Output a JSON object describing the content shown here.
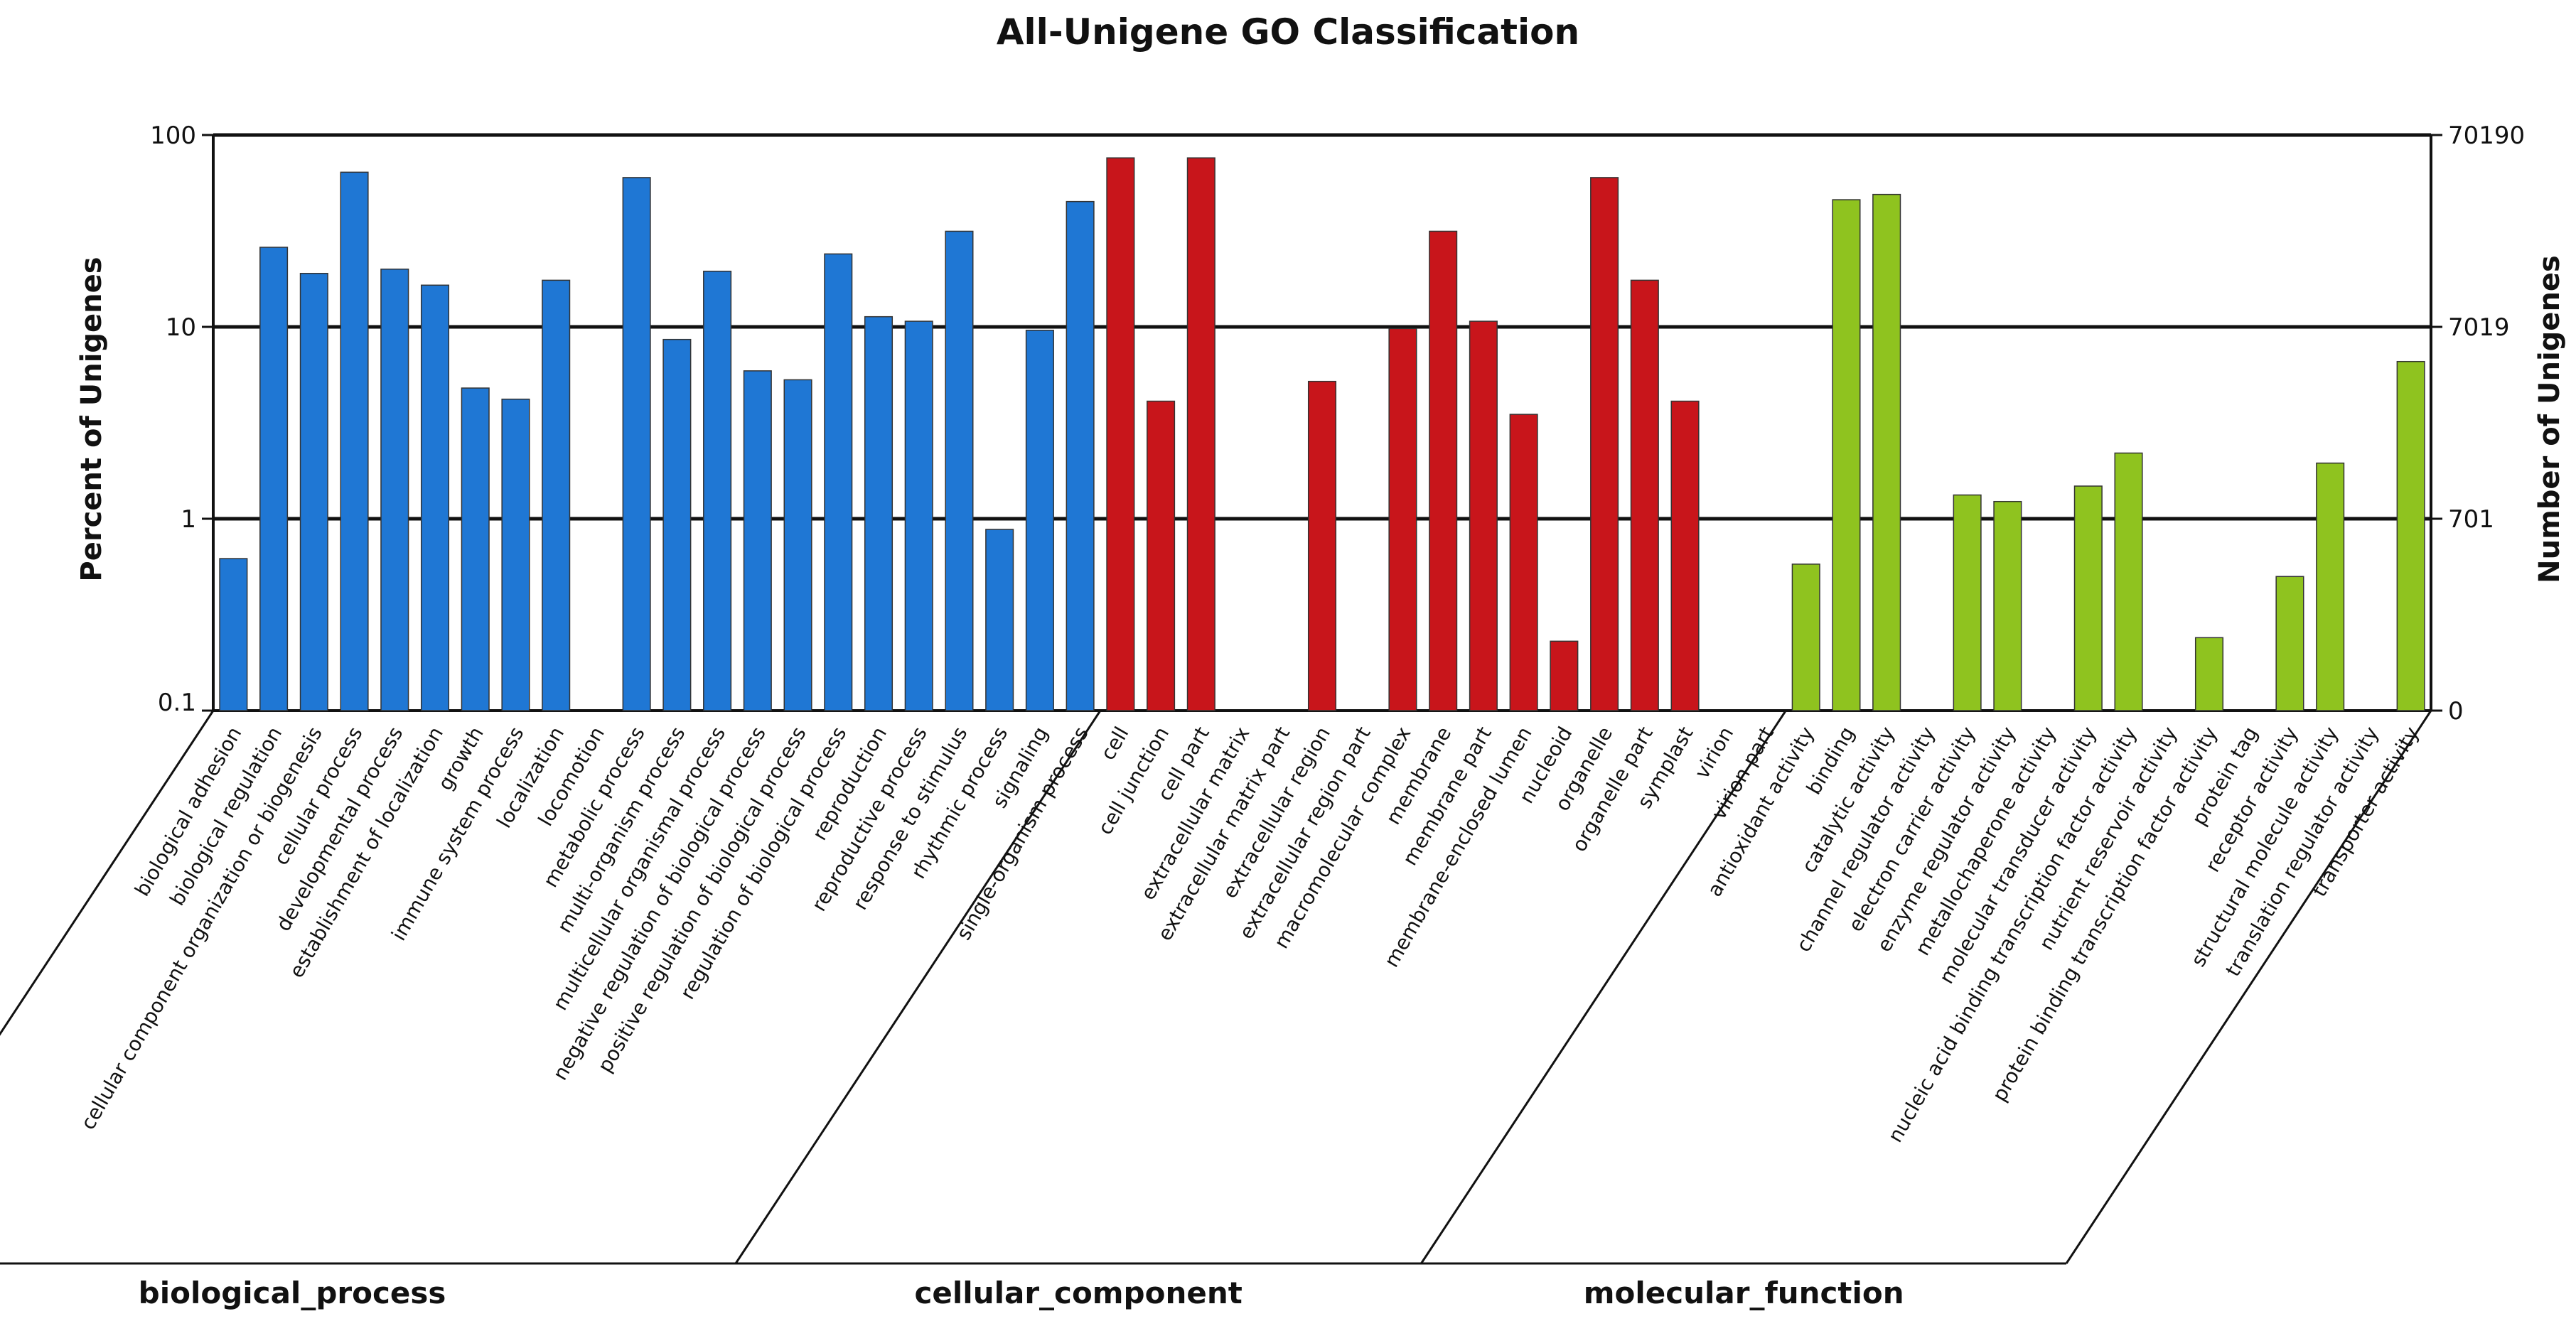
{
  "chart_data": {
    "type": "bar",
    "title": "All-Unigene GO Classification",
    "ylabel": "Percent of Unigenes",
    "ylabel_right": "Number of Unigenes",
    "yscale": "log",
    "ylim": [
      0.1,
      100
    ],
    "left_ticks": [
      "100",
      "10",
      "1",
      "0.1"
    ],
    "right_ticks": [
      "70190",
      "7019",
      "701",
      "0"
    ],
    "grid": "horizontal at 1, 10, 100",
    "groups": [
      {
        "name": "biological_process",
        "color": "#1f77d4",
        "categories": [
          "biological adhesion",
          "biological regulation",
          "cellular component organization or biogenesis",
          "cellular process",
          "developmental process",
          "establishment of localization",
          "growth",
          "immune system process",
          "localization",
          "locomotion",
          "metabolic process",
          "multi-organism process",
          "multicellular organismal process",
          "negative regulation of biological process",
          "positive regulation of biological process",
          "regulation of biological process",
          "reproduction",
          "reproductive process",
          "response to stimulus",
          "rhythmic process",
          "signaling",
          "single-organism process"
        ],
        "values": [
          0.62,
          26,
          19,
          64,
          20,
          16.5,
          4.8,
          4.2,
          17.5,
          null,
          60,
          8.6,
          19.5,
          5.9,
          5.3,
          24,
          11.3,
          10.7,
          31.5,
          0.88,
          9.6,
          45
        ]
      },
      {
        "name": "cellular_component",
        "color": "#c8151b",
        "categories": [
          "cell",
          "cell junction",
          "cell part",
          "extracellular matrix",
          "extracellular matrix part",
          "extracellular region",
          "extracellular region part",
          "macromolecular complex",
          "membrane",
          "membrane part",
          "membrane-enclosed lumen",
          "nucleoid",
          "organelle",
          "organelle part",
          "symplast",
          "virion",
          "virion part"
        ],
        "values": [
          76,
          4.1,
          76,
          null,
          null,
          5.2,
          null,
          9.8,
          31.5,
          10.7,
          3.5,
          0.23,
          60,
          17.5,
          4.1,
          null,
          null
        ]
      },
      {
        "name": "molecular_function",
        "color": "#8fc31f",
        "categories": [
          "antioxidant activity",
          "binding",
          "catalytic activity",
          "channel regulator activity",
          "electron carrier activity",
          "enzyme regulator activity",
          "metallochaperone activity",
          "molecular transducer activity",
          "nucleic acid binding transcription factor activity",
          "nutrient reservoir activity",
          "protein binding transcription factor activity",
          "protein tag",
          "receptor activity",
          "structural molecule activity",
          "translation regulator activity",
          "transporter activity"
        ],
        "values": [
          0.58,
          46,
          49,
          null,
          1.33,
          1.23,
          null,
          1.48,
          2.2,
          null,
          0.24,
          null,
          0.5,
          1.95,
          null,
          6.6
        ]
      }
    ]
  }
}
